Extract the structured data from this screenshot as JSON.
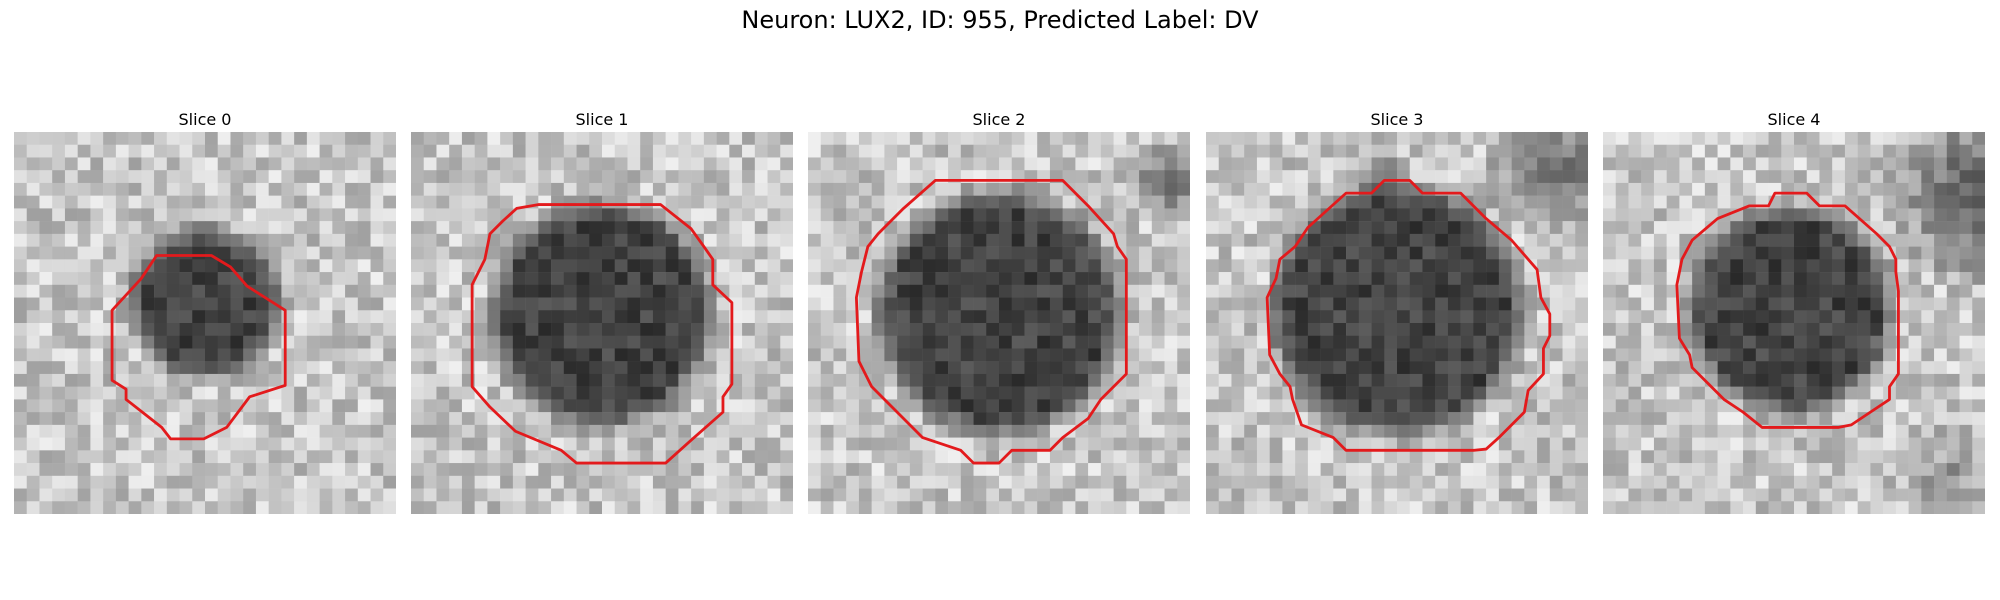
{
  "figure": {
    "title": "Neuron: LUX2, ID: 955, Predicted Label: DV"
  },
  "panels": [
    {
      "title": "Slice 0",
      "outline_color": "#e31a1c"
    },
    {
      "title": "Slice 1",
      "outline_color": "#e31a1c"
    },
    {
      "title": "Slice 2",
      "outline_color": "#e31a1c"
    },
    {
      "title": "Slice 3",
      "outline_color": "#e31a1c"
    },
    {
      "title": "Slice 4",
      "outline_color": "#e31a1c"
    }
  ]
}
